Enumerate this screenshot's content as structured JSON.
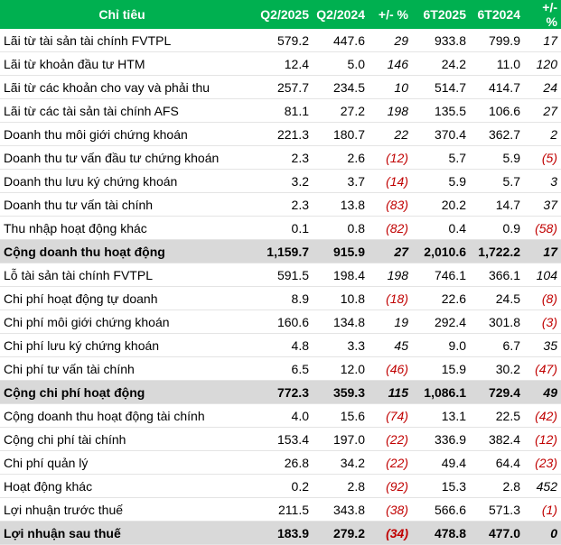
{
  "table": {
    "header": [
      "Chỉ tiêu",
      "Q2/2025",
      "Q2/2024",
      "+/- %",
      "6T2025",
      "6T2024",
      "+/- %"
    ],
    "rows": [
      [
        "Lãi từ tài sản tài chính FVTPL",
        "579.2",
        "447.6",
        "29",
        "933.8",
        "799.9",
        "17"
      ],
      [
        "Lãi từ khoản đầu tư HTM",
        "12.4",
        "5.0",
        "146",
        "24.2",
        "11.0",
        "120"
      ],
      [
        "Lãi từ các khoản cho vay và phải thu",
        "257.7",
        "234.5",
        "10",
        "514.7",
        "414.7",
        "24"
      ],
      [
        "Lãi từ các tài sản tài chính AFS",
        "81.1",
        "27.2",
        "198",
        "135.5",
        "106.6",
        "27"
      ],
      [
        "Doanh thu môi giới chứng khoán",
        "221.3",
        "180.7",
        "22",
        "370.4",
        "362.7",
        "2"
      ],
      [
        "Doanh thu tư vấn đầu tư chứng khoán",
        "2.3",
        "2.6",
        "(12)",
        "5.7",
        "5.9",
        "(5)"
      ],
      [
        "Doanh thu lưu ký chứng khoán",
        "3.2",
        "3.7",
        "(14)",
        "5.9",
        "5.7",
        "3"
      ],
      [
        "Doanh thu tư vấn tài chính",
        "2.3",
        "13.8",
        "(83)",
        "20.2",
        "14.7",
        "37"
      ],
      [
        "Thu nhập hoạt động khác",
        "0.1",
        "0.8",
        "(82)",
        "0.4",
        "0.9",
        "(58)"
      ],
      [
        "Cộng doanh thu hoạt động",
        "1,159.7",
        "915.9",
        "27",
        "2,010.6",
        "1,722.2",
        "17"
      ],
      [
        "Lỗ tài sản tài chính FVTPL",
        "591.5",
        "198.4",
        "198",
        "746.1",
        "366.1",
        "104"
      ],
      [
        "Chi phí hoạt động tự doanh",
        "8.9",
        "10.8",
        "(18)",
        "22.6",
        "24.5",
        "(8)"
      ],
      [
        "Chi phí môi giới chứng khoán",
        "160.6",
        "134.8",
        "19",
        "292.4",
        "301.8",
        "(3)"
      ],
      [
        "Chi phí lưu ký chứng khoán",
        "4.8",
        "3.3",
        "45",
        "9.0",
        "6.7",
        "35"
      ],
      [
        "Chi phí tư vấn tài chính",
        "6.5",
        "12.0",
        "(46)",
        "15.9",
        "30.2",
        "(47)"
      ],
      [
        "Cộng chi phí hoạt động",
        "772.3",
        "359.3",
        "115",
        "1,086.1",
        "729.4",
        "49"
      ],
      [
        "Cộng doanh thu hoạt động tài chính",
        "4.0",
        "15.6",
        "(74)",
        "13.1",
        "22.5",
        "(42)"
      ],
      [
        "Cộng chi phí tài chính",
        "153.4",
        "197.0",
        "(22)",
        "336.9",
        "382.4",
        "(12)"
      ],
      [
        "Chi phí quản lý",
        "26.8",
        "34.2",
        "(22)",
        "49.4",
        "64.4",
        "(23)"
      ],
      [
        "Hoạt động khác",
        "0.2",
        "2.8",
        "(92)",
        "15.3",
        "2.8",
        "452"
      ],
      [
        "Lợi nhuận trước thuế",
        "211.5",
        "343.8",
        "(38)",
        "566.6",
        "571.3",
        "(1)"
      ],
      [
        "Lợi nhuận sau thuế",
        "183.9",
        "279.2",
        "(34)",
        "478.8",
        "477.0",
        "0"
      ]
    ],
    "highlighted_rows": [
      9,
      15,
      21
    ]
  }
}
